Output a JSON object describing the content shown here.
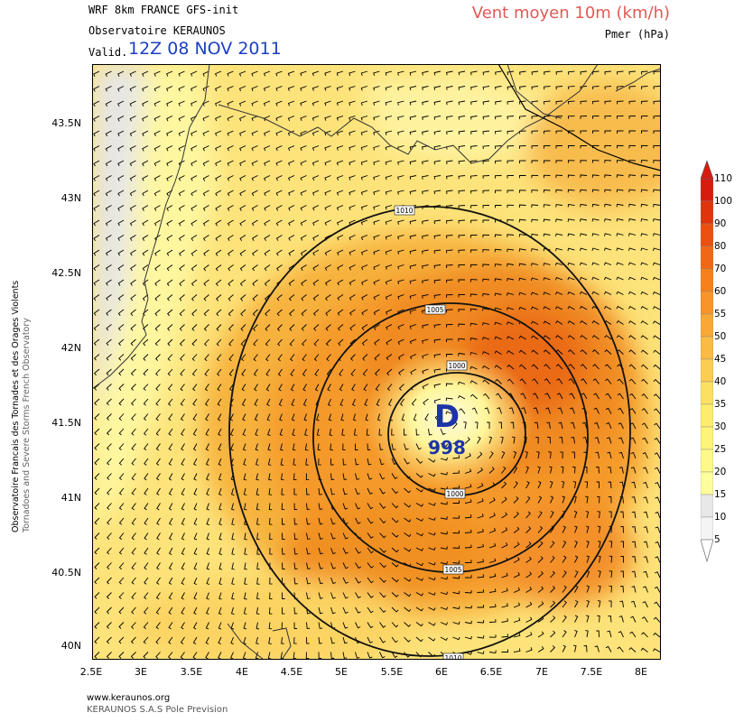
{
  "header": {
    "model_title": "WRF 8km FRANCE  GFS-init",
    "observatory": "Observatoire KERAUNOS",
    "valid_label": "Valid.",
    "valid_date": "12Z 08 NOV 2011",
    "parameter_title": "Vent moyen 10m (km/h)",
    "parameter_subtitle": "Pmer (hPa)"
  },
  "side_credit": {
    "line1": "Observatoire Francais des Tornades et des Orages Violents",
    "line2": "Tornadoes and Severe Storms French Observatory"
  },
  "map": {
    "lat_ticks": [
      "43.5N",
      "43N",
      "42.5N",
      "42N",
      "41.5N",
      "41N",
      "40.5N",
      "40N"
    ],
    "lon_ticks": [
      "2.5E",
      "3E",
      "3.5E",
      "4E",
      "4.5E",
      "5E",
      "5.5E",
      "6E",
      "6.5E",
      "7E",
      "7.5E",
      "8E"
    ],
    "isobar_labels": [
      "1010",
      "1005",
      "1000",
      "1000",
      "1005",
      "1010"
    ],
    "low_center": {
      "symbol": "D",
      "pressure": "998"
    }
  },
  "legend": {
    "labels": [
      "110",
      "100",
      "90",
      "80",
      "70",
      "60",
      "55",
      "50",
      "45",
      "40",
      "35",
      "30",
      "25",
      "20",
      "15",
      "10",
      "5"
    ],
    "colors": [
      "#d61c0f",
      "#e0340c",
      "#ea5010",
      "#f06815",
      "#f5801c",
      "#f7952a",
      "#f8a837",
      "#f9bb45",
      "#fbcd53",
      "#fce062",
      "#fdec6d",
      "#fef47a",
      "#fff98a",
      "#fdfd9e",
      "#e8e8e8",
      "#f4f4f4"
    ]
  },
  "footer": {
    "url": "www.keraunos.org",
    "company": "KERAUNOS S.A.S Pole Prevision"
  }
}
